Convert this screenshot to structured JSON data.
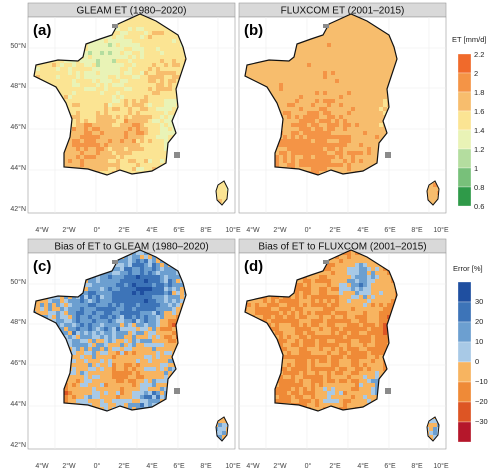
{
  "panels": [
    {
      "id": "a",
      "label": "(a)",
      "title": "GLEAM ET (1980–2020)",
      "map_theme": "et",
      "dominant_colors": [
        "#a8d49a",
        "#f9e28a",
        "#f2a355",
        "#e36a2e"
      ]
    },
    {
      "id": "b",
      "label": "(b)",
      "title": "FLUXCOM ET (2001–2015)",
      "map_theme": "et",
      "dominant_colors": [
        "#f7c26a",
        "#f2a355",
        "#a8d49a"
      ]
    },
    {
      "id": "c",
      "label": "(c)",
      "title": "Bias of ET to GLEAM (1980–2020)",
      "map_theme": "bias",
      "dominant_colors": [
        "#3d74b8",
        "#7fb1d8",
        "#f5a546",
        "#de5a26",
        "#b91c2b"
      ]
    },
    {
      "id": "d",
      "label": "(d)",
      "title": "Bias of ET to FLUXCOM (2001–2015)",
      "map_theme": "bias",
      "dominant_colors": [
        "#f5a546",
        "#e9762f",
        "#7fb1d8",
        "#3d74b8"
      ]
    }
  ],
  "axes": {
    "lat_ticks": [
      "42°N",
      "44°N",
      "46°N",
      "48°N",
      "50°N"
    ],
    "lon_ticks": [
      "4°W",
      "2°W",
      "0°",
      "2°E",
      "4°E",
      "6°E",
      "8°E",
      "10°E"
    ]
  },
  "colorbars": [
    {
      "id": "et",
      "title": "ET [mm/d]",
      "tick_labels": [
        "2.2",
        "2",
        "1.8",
        "1.6",
        "1.4",
        "1.2",
        "1",
        "0.8",
        "0.6"
      ],
      "colors": [
        "#f06a2b",
        "#f49446",
        "#f7bd6d",
        "#fbe493",
        "#e9f3b6",
        "#b4dd9f",
        "#78c07a",
        "#2f9a49"
      ]
    },
    {
      "id": "bias",
      "title": "Error [%]",
      "tick_labels": [
        "30",
        "20",
        "10",
        "0",
        "−10",
        "−20",
        "−30"
      ],
      "colors": [
        "#1f4fa0",
        "#3d74b8",
        "#6c9fd0",
        "#a8c9e6",
        "#f7b460",
        "#ef8a37",
        "#dd5524",
        "#b5172b"
      ]
    }
  ]
}
